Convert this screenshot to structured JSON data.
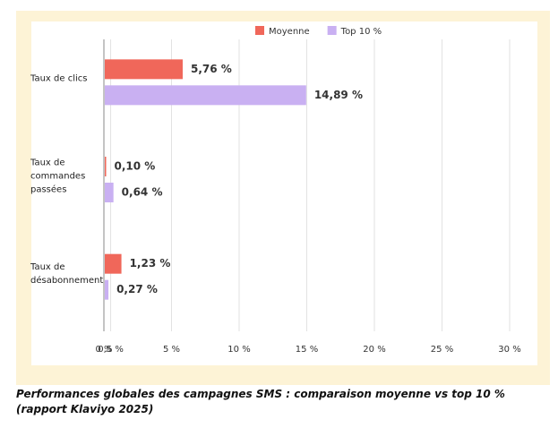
{
  "chart_data": {
    "type": "hbar",
    "caption": "Performances globales des campagnes SMS : comparaison moyenne vs top 10 % (rapport Klaviyo 2025)",
    "categories": [
      "Taux de clics",
      "Taux de commandes passées",
      "Taux de désabonnement"
    ],
    "series": [
      {
        "name": "Moyenne",
        "color": "#f0675a",
        "values": [
          5.76,
          0.1,
          1.23
        ],
        "value_labels": [
          "5,76 %",
          "0,10 %",
          "1,23 %"
        ]
      },
      {
        "name": "Top 10 %",
        "color": "#c9b0f2",
        "values": [
          14.89,
          0.64,
          0.27
        ],
        "value_labels": [
          "14,89 %",
          "0,64 %",
          "0,27 %"
        ]
      }
    ],
    "xlim": [
      0,
      30
    ],
    "xticks": [
      {
        "value": 0,
        "label": "0 %"
      },
      {
        "value": 0.5,
        "label": "0,5 %"
      },
      {
        "value": 5,
        "label": "5 %"
      },
      {
        "value": 10,
        "label": "10 %"
      },
      {
        "value": 15,
        "label": "15 %"
      },
      {
        "value": 20,
        "label": "20 %"
      },
      {
        "value": 25,
        "label": "25 %"
      },
      {
        "value": 30,
        "label": "30 %"
      }
    ],
    "grid": true
  }
}
